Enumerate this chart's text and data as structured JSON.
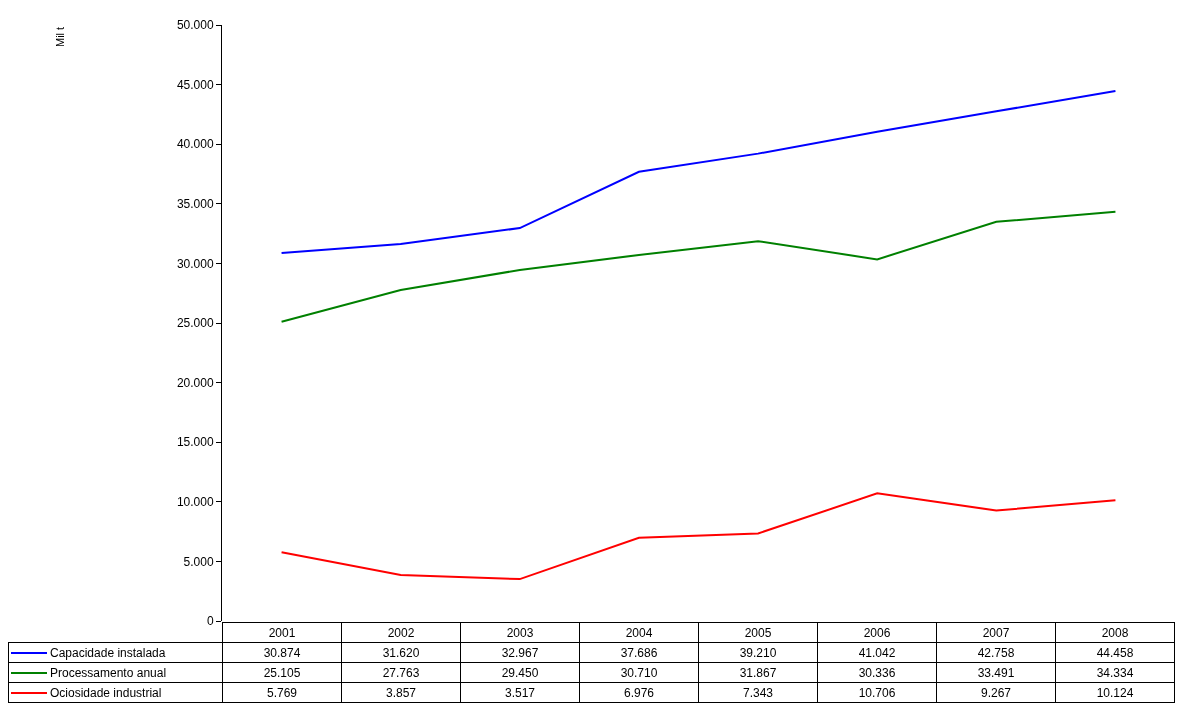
{
  "chart_data": {
    "type": "line",
    "annotations": [
      "Mil t"
    ],
    "categories": [
      "2001",
      "2002",
      "2003",
      "2004",
      "2005",
      "2006",
      "2007",
      "2008"
    ],
    "series": [
      {
        "name": "Capacidade instalada",
        "color": "#0000ff",
        "values": [
          30874,
          31620,
          32967,
          37686,
          39210,
          41042,
          42758,
          44458
        ],
        "value_labels": [
          "30.874",
          "31.620",
          "32.967",
          "37.686",
          "39.210",
          "41.042",
          "42.758",
          "44.458"
        ]
      },
      {
        "name": "Processamento anual",
        "color": "#008000",
        "values": [
          25105,
          27763,
          29450,
          30710,
          31867,
          30336,
          33491,
          34334
        ],
        "value_labels": [
          "25.105",
          "27.763",
          "29.450",
          "30.710",
          "31.867",
          "30.336",
          "33.491",
          "34.334"
        ]
      },
      {
        "name": "Ociosidade industrial",
        "color": "#ff0000",
        "values": [
          5769,
          3857,
          3517,
          6976,
          7343,
          10706,
          9267,
          10124
        ],
        "value_labels": [
          "5.769",
          "3.857",
          "3.517",
          "6.976",
          "7.343",
          "10.706",
          "9.267",
          "10.124"
        ]
      }
    ],
    "ylim": [
      0,
      50000
    ],
    "yticks": [
      0,
      {
        "value": 5000,
        "label": "5.000"
      },
      {
        "value": 10000,
        "label": "10.000"
      },
      {
        "value": 15000,
        "label": "15.000"
      },
      {
        "value": 20000,
        "label": "20.000"
      },
      {
        "value": 25000,
        "label": "25.000"
      },
      {
        "value": 30000,
        "label": "30.000"
      },
      {
        "value": 35000,
        "label": "35.000"
      },
      {
        "value": 40000,
        "label": "40.000"
      },
      {
        "value": 45000,
        "label": "45.000"
      },
      {
        "value": 50000,
        "label": "50.000"
      }
    ],
    "grid": false,
    "legend": "bottom left",
    "tick_labels": "y",
    "marker": "none",
    "line_style": "solid"
  }
}
